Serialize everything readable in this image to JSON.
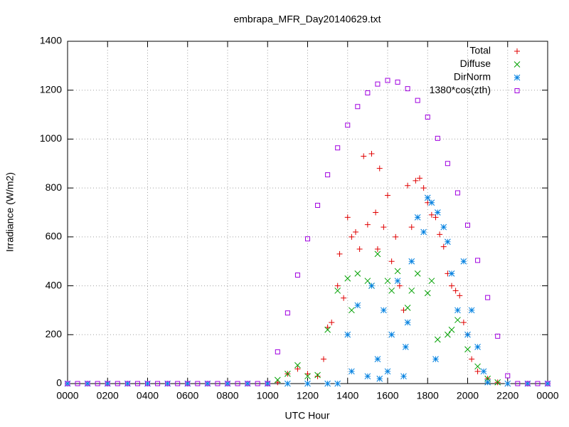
{
  "chart_data": {
    "type": "scatter",
    "title": "embrapa_MFR_Day20140629.txt",
    "xlabel": "UTC Hour",
    "ylabel": "Irradiance (W/m2)",
    "xlim": [
      0,
      24
    ],
    "ylim": [
      0,
      1400
    ],
    "xticks": [
      {
        "value": 0,
        "label": "0000"
      },
      {
        "value": 2,
        "label": "0200"
      },
      {
        "value": 4,
        "label": "0400"
      },
      {
        "value": 6,
        "label": "0600"
      },
      {
        "value": 8,
        "label": "0800"
      },
      {
        "value": 10,
        "label": "1000"
      },
      {
        "value": 12,
        "label": "1200"
      },
      {
        "value": 14,
        "label": "1400"
      },
      {
        "value": 16,
        "label": "1600"
      },
      {
        "value": 18,
        "label": "1800"
      },
      {
        "value": 20,
        "label": "2000"
      },
      {
        "value": 22,
        "label": "2200"
      },
      {
        "value": 24,
        "label": "0000"
      }
    ],
    "yticks": [
      0,
      200,
      400,
      600,
      800,
      1000,
      1200,
      1400
    ],
    "grid": true,
    "legend": "top-right",
    "series": [
      {
        "name": "Total",
        "color": "#e00000",
        "marker": "plus",
        "x": [
          0,
          2,
          4,
          6,
          8,
          10,
          10.5,
          11,
          11.5,
          12,
          12.5,
          12.8,
          13,
          13.2,
          13.5,
          13.6,
          13.8,
          14,
          14.2,
          14.4,
          14.6,
          14.8,
          15,
          15.2,
          15.4,
          15.5,
          15.6,
          15.8,
          16,
          16.2,
          16.4,
          16.6,
          16.8,
          17,
          17.2,
          17.4,
          17.6,
          17.8,
          18,
          18.2,
          18.4,
          18.6,
          18.8,
          19,
          19.2,
          19.4,
          19.6,
          19.8,
          20,
          20.2,
          20.5,
          21,
          21.5,
          22,
          23,
          24
        ],
        "values": [
          0,
          0,
          0,
          0,
          0,
          0,
          5,
          40,
          60,
          40,
          30,
          100,
          230,
          250,
          400,
          530,
          350,
          680,
          600,
          620,
          550,
          930,
          650,
          940,
          700,
          550,
          880,
          640,
          770,
          500,
          600,
          400,
          300,
          810,
          640,
          830,
          840,
          800,
          740,
          690,
          680,
          610,
          560,
          450,
          400,
          380,
          360,
          250,
          200,
          100,
          50,
          20,
          5,
          0,
          0,
          0
        ]
      },
      {
        "name": "Diffuse",
        "color": "#00a000",
        "marker": "cross",
        "x": [
          10.5,
          11,
          11.5,
          12,
          12.5,
          13,
          13.5,
          14,
          14.2,
          14.5,
          15,
          15.2,
          15.5,
          16,
          16.2,
          16.5,
          17,
          17.2,
          17.5,
          18,
          18.2,
          18.5,
          19,
          19.2,
          19.5,
          20,
          20.5,
          21,
          21.5
        ],
        "values": [
          15,
          40,
          75,
          30,
          35,
          220,
          380,
          430,
          300,
          450,
          420,
          400,
          530,
          420,
          380,
          460,
          310,
          380,
          450,
          370,
          420,
          180,
          200,
          220,
          260,
          140,
          70,
          20,
          5
        ]
      },
      {
        "name": "DirNorm",
        "color": "#0080e0",
        "marker": "star",
        "x": [
          0,
          1,
          2,
          3,
          4,
          5,
          6,
          7,
          8,
          9,
          10,
          11,
          12,
          13,
          13.5,
          14,
          14.2,
          14.5,
          15,
          15.2,
          15.5,
          15.6,
          15.8,
          16,
          16.2,
          16.5,
          16.8,
          16.9,
          17,
          17.2,
          17.5,
          17.8,
          18,
          18.2,
          18.4,
          18.5,
          18.8,
          19,
          19.2,
          19.5,
          19.8,
          20,
          20.2,
          20.5,
          20.8,
          21,
          22,
          23,
          24
        ],
        "values": [
          0,
          0,
          0,
          0,
          0,
          0,
          0,
          0,
          0,
          0,
          0,
          0,
          0,
          0,
          0,
          200,
          50,
          320,
          30,
          400,
          100,
          20,
          300,
          50,
          200,
          420,
          30,
          150,
          250,
          500,
          680,
          620,
          760,
          740,
          100,
          700,
          640,
          580,
          450,
          300,
          500,
          200,
          300,
          150,
          50,
          5,
          0,
          0,
          0
        ]
      },
      {
        "name": "1380*cos(zth)",
        "color": "#a000e0",
        "marker": "square",
        "x": [
          0,
          0.5,
          1,
          1.5,
          2,
          2.5,
          3,
          3.5,
          4,
          4.5,
          5,
          5.5,
          6,
          6.5,
          7,
          7.5,
          8,
          8.5,
          9,
          9.5,
          10,
          10.5,
          11,
          11.5,
          12,
          12.5,
          13,
          13.5,
          14,
          14.5,
          15,
          15.5,
          16,
          16.5,
          17,
          17.5,
          18,
          18.5,
          19,
          19.5,
          20,
          20.5,
          21,
          21.5,
          22,
          22.5,
          23,
          23.5,
          24
        ],
        "values": [
          0,
          0,
          0,
          0,
          0,
          0,
          0,
          0,
          0,
          0,
          0,
          0,
          0,
          0,
          0,
          0,
          0,
          0,
          0,
          0,
          0,
          130,
          289,
          444,
          592,
          729,
          854,
          964,
          1057,
          1133,
          1189,
          1225,
          1240,
          1233,
          1206,
          1158,
          1090,
          1003,
          900,
          780,
          648,
          504,
          352,
          194,
          32,
          0,
          0,
          0,
          0
        ]
      }
    ]
  }
}
